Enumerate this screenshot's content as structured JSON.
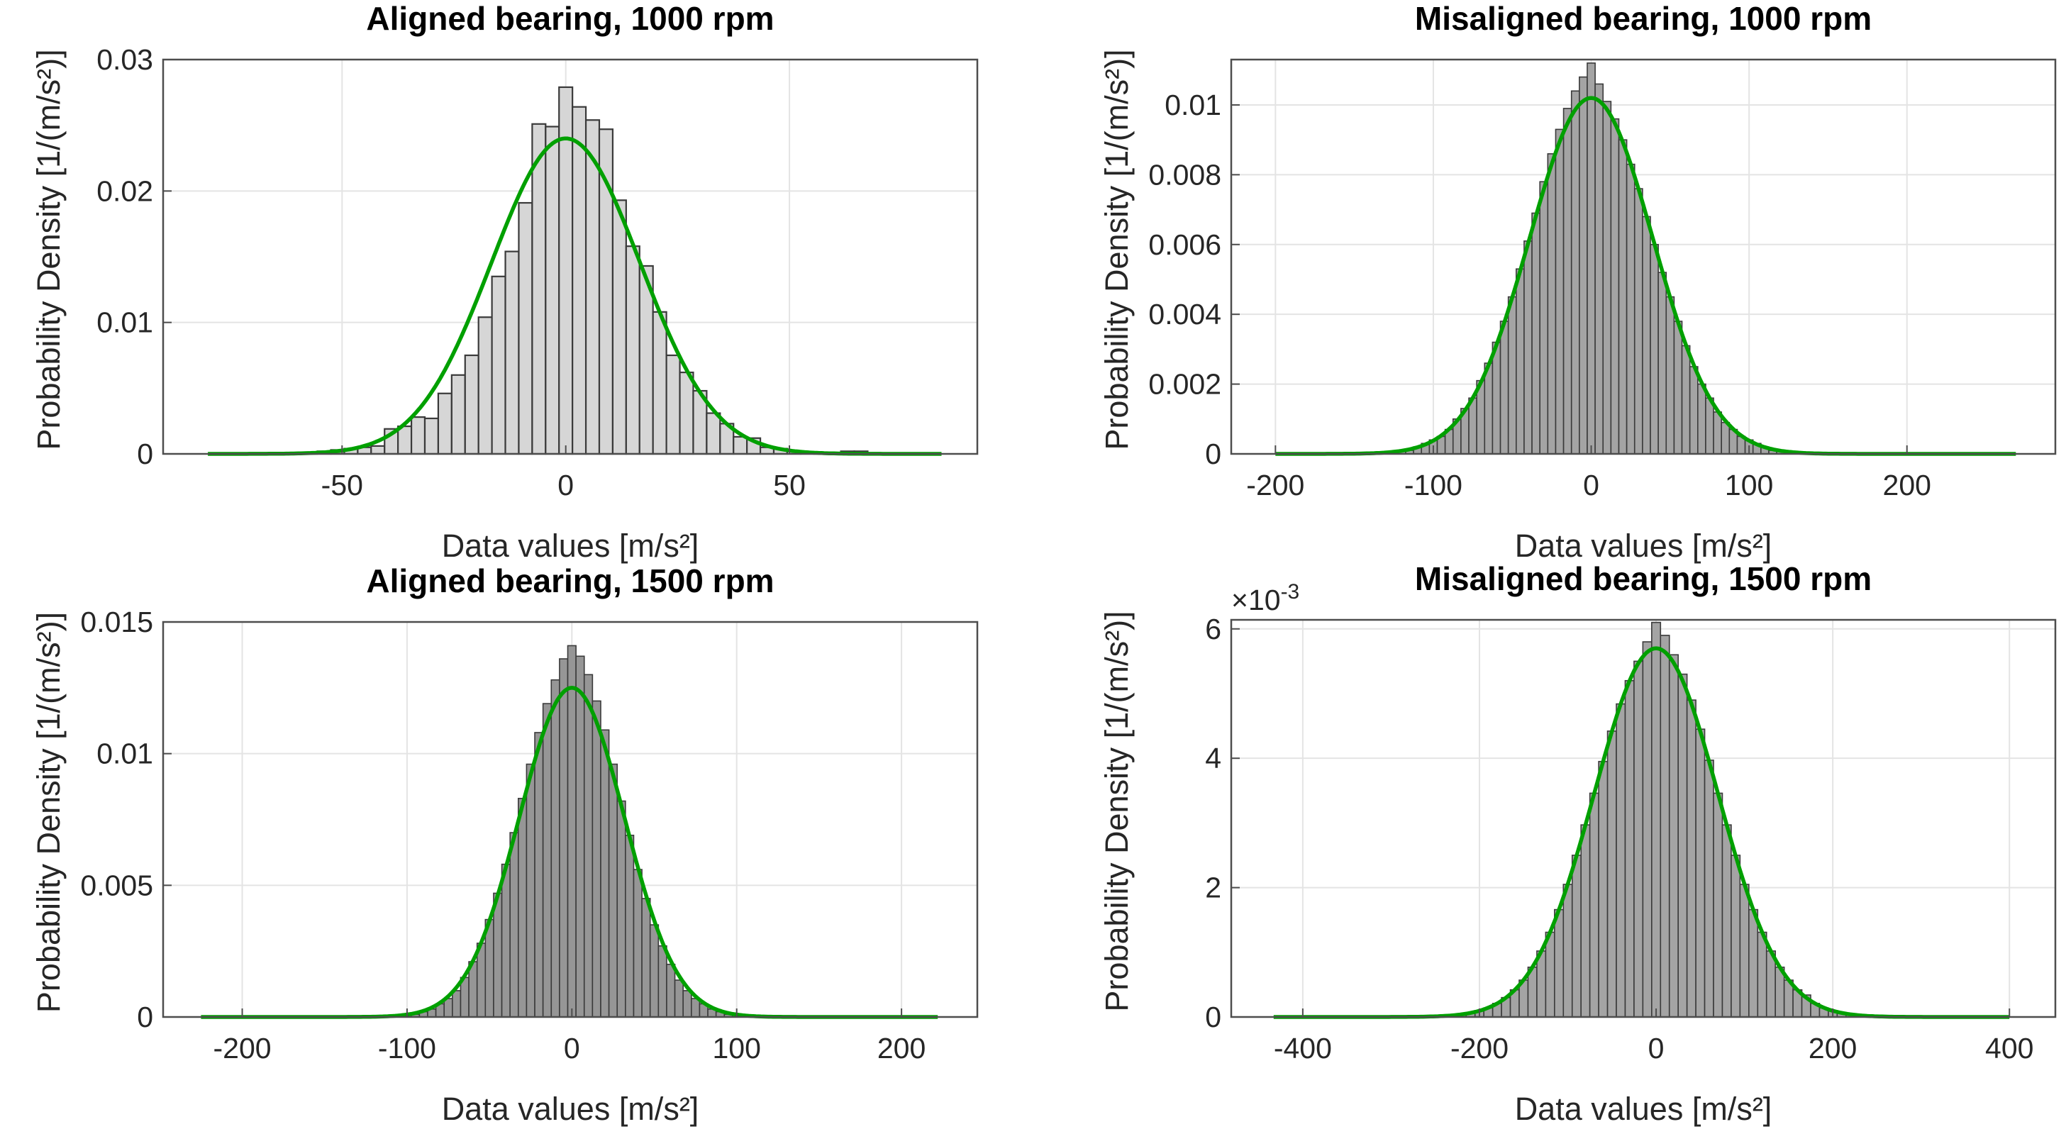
{
  "chart_data": [
    {
      "type": "bar",
      "title": "Aligned bearing, 1000 rpm",
      "xlabel": "Data values [m/s²]",
      "ylabel": "Probability Density [1/(m/s²)]",
      "xlim": [
        -90,
        92
      ],
      "ylim": [
        0,
        0.03
      ],
      "xticks": [
        -50,
        0,
        50
      ],
      "xtick_labels": [
        "-50",
        "0",
        "50"
      ],
      "yticks": [
        0,
        0.01,
        0.02,
        0.03
      ],
      "ytick_labels": [
        "0",
        "0.01",
        "0.02",
        "0.03"
      ],
      "grid": true,
      "bar_color": "#d6d6d6",
      "histogram": {
        "bin_width": 3,
        "bin_centers": [
          -63,
          -60,
          -57,
          -54,
          -51,
          -48,
          -45,
          -42,
          -39,
          -36,
          -33,
          -30,
          -27,
          -24,
          -21,
          -18,
          -15,
          -12,
          -9,
          -6,
          -3,
          0,
          3,
          6,
          9,
          12,
          15,
          18,
          21,
          24,
          27,
          30,
          33,
          36,
          39,
          42,
          45,
          48,
          51,
          54,
          57,
          60,
          63,
          66
        ],
        "values": [
          0.0001,
          0.0001,
          0.0001,
          0.0002,
          0.0003,
          0.0004,
          0.0005,
          0.0006,
          0.0019,
          0.0021,
          0.0028,
          0.0027,
          0.0046,
          0.006,
          0.0075,
          0.0104,
          0.0135,
          0.0154,
          0.0191,
          0.0251,
          0.0249,
          0.0279,
          0.0264,
          0.0254,
          0.0247,
          0.0193,
          0.0158,
          0.0143,
          0.0108,
          0.0075,
          0.0062,
          0.0048,
          0.0031,
          0.0023,
          0.0013,
          0.0012,
          0.0005,
          0.0004,
          0.0002,
          0.0001,
          0.0001,
          0.0001,
          0.0002,
          0.0002
        ]
      },
      "fit": {
        "type": "normal",
        "mean": 0,
        "sigma": 16.6,
        "peak": 0.024,
        "x_range": [
          -80,
          84
        ],
        "color": "#00a000"
      }
    },
    {
      "type": "bar",
      "title": "Misaligned bearing, 1000 rpm",
      "xlabel": "Data values [m/s²]",
      "ylabel": "Probability Density [1/(m/s²)]",
      "xlim": [
        -228,
        294
      ],
      "ylim": [
        0,
        0.0113
      ],
      "xticks": [
        -200,
        -100,
        0,
        100,
        200
      ],
      "xtick_labels": [
        "-200",
        "-100",
        "0",
        "100",
        "200"
      ],
      "yticks": [
        0,
        0.002,
        0.004,
        0.006,
        0.008,
        0.01
      ],
      "ytick_labels": [
        "0",
        "0.002",
        "0.004",
        "0.006",
        "0.008",
        "0.01"
      ],
      "grid": true,
      "bar_color": "#a4a4a4",
      "histogram": {
        "bin_width": 5,
        "bin_centers": [
          -120,
          -115,
          -110,
          -105,
          -100,
          -95,
          -90,
          -85,
          -80,
          -75,
          -70,
          -65,
          -60,
          -55,
          -50,
          -45,
          -40,
          -35,
          -30,
          -25,
          -20,
          -15,
          -10,
          -5,
          0,
          5,
          10,
          15,
          20,
          25,
          30,
          35,
          40,
          45,
          50,
          55,
          60,
          65,
          70,
          75,
          80,
          85,
          90,
          95,
          100,
          105,
          110,
          115,
          120
        ],
        "values": [
          0.0001,
          0.0001,
          0.0002,
          0.0003,
          0.0004,
          0.0005,
          0.0007,
          0.001,
          0.0013,
          0.0016,
          0.0021,
          0.0026,
          0.0032,
          0.0038,
          0.0045,
          0.0053,
          0.0061,
          0.0069,
          0.0078,
          0.0086,
          0.0093,
          0.0099,
          0.0104,
          0.0108,
          0.0112,
          0.0106,
          0.0101,
          0.0096,
          0.009,
          0.0083,
          0.0076,
          0.0068,
          0.006,
          0.0052,
          0.0045,
          0.0038,
          0.0031,
          0.0025,
          0.002,
          0.0016,
          0.0012,
          0.0009,
          0.0007,
          0.0005,
          0.0004,
          0.0003,
          0.0002,
          0.0001,
          0.0001
        ]
      },
      "fit": {
        "type": "normal",
        "mean": 0,
        "sigma": 39,
        "peak": 0.0102,
        "x_range": [
          -200,
          269
        ],
        "color": "#00a000"
      }
    },
    {
      "type": "bar",
      "title": "Aligned bearing, 1500 rpm",
      "xlabel": "Data values [m/s²]",
      "ylabel": "Probability Density [1/(m/s²)]",
      "xlim": [
        -248,
        246
      ],
      "ylim": [
        0,
        0.015
      ],
      "xticks": [
        -200,
        -100,
        0,
        100,
        200
      ],
      "xtick_labels": [
        "-200",
        "-100",
        "0",
        "100",
        "200"
      ],
      "yticks": [
        0,
        0.005,
        0.01,
        0.015
      ],
      "ytick_labels": [
        "0",
        "0.005",
        "0.01",
        "0.015"
      ],
      "grid": true,
      "bar_color": "#969696",
      "histogram": {
        "bin_width": 5,
        "bin_centers": [
          -100,
          -95,
          -90,
          -85,
          -80,
          -75,
          -70,
          -65,
          -60,
          -55,
          -50,
          -45,
          -40,
          -35,
          -30,
          -25,
          -20,
          -15,
          -10,
          -5,
          0,
          5,
          10,
          15,
          20,
          25,
          30,
          35,
          40,
          45,
          50,
          55,
          60,
          65,
          70,
          75,
          80,
          85,
          90,
          95,
          100
        ],
        "values": [
          0.0001,
          0.0001,
          0.0002,
          0.0003,
          0.0005,
          0.0007,
          0.001,
          0.0015,
          0.0021,
          0.0028,
          0.0037,
          0.0047,
          0.0058,
          0.007,
          0.0083,
          0.0096,
          0.0108,
          0.0119,
          0.0128,
          0.0136,
          0.0141,
          0.0137,
          0.013,
          0.012,
          0.0109,
          0.0096,
          0.0082,
          0.0069,
          0.0056,
          0.0045,
          0.0035,
          0.0027,
          0.002,
          0.0014,
          0.001,
          0.0007,
          0.0005,
          0.0003,
          0.0002,
          0.0001,
          0.0001
        ]
      },
      "fit": {
        "type": "normal",
        "mean": 0,
        "sigma": 31.9,
        "peak": 0.0125,
        "x_range": [
          -225,
          222
        ],
        "color": "#00a000"
      }
    },
    {
      "type": "bar",
      "title": "Misaligned bearing, 1500 rpm",
      "xlabel": "Data values [m/s²]",
      "ylabel": "Probability Density [1/(m/s²)]",
      "xlim": [
        -481,
        452
      ],
      "ylim": [
        0,
        0.00614
      ],
      "xticks": [
        -400,
        -200,
        0,
        200,
        400
      ],
      "xtick_labels": [
        "-400",
        "-200",
        "0",
        "200",
        "400"
      ],
      "yticks": [
        0,
        0.002,
        0.004,
        0.006
      ],
      "ytick_labels": [
        "0",
        "2",
        "4",
        "6"
      ],
      "y_exponent_label": "×10",
      "y_exponent": "-3",
      "grid": true,
      "bar_color": "#a4a4a4",
      "histogram": {
        "bin_width": 10,
        "bin_centers": [
          -230,
          -220,
          -210,
          -200,
          -190,
          -180,
          -170,
          -160,
          -150,
          -140,
          -130,
          -120,
          -110,
          -100,
          -90,
          -80,
          -70,
          -60,
          -50,
          -40,
          -30,
          -20,
          -10,
          0,
          10,
          20,
          30,
          40,
          50,
          60,
          70,
          80,
          90,
          100,
          110,
          120,
          130,
          140,
          150,
          160,
          170,
          180,
          190,
          200,
          210,
          220,
          230,
          240
        ],
        "values": [
          3e-05,
          4e-05,
          6e-05,
          0.0001,
          0.00014,
          0.00021,
          0.0003,
          0.00042,
          0.00057,
          0.00077,
          0.00102,
          0.00131,
          0.00166,
          0.00205,
          0.0025,
          0.00297,
          0.00346,
          0.00395,
          0.00442,
          0.00484,
          0.0052,
          0.0055,
          0.0058,
          0.0061,
          0.0059,
          0.0056,
          0.0053,
          0.0049,
          0.00445,
          0.00397,
          0.00346,
          0.00297,
          0.0025,
          0.00205,
          0.00166,
          0.00131,
          0.00102,
          0.00077,
          0.00057,
          0.00042,
          0.00034,
          0.00021,
          0.00014,
          0.0001,
          6e-05,
          4e-05,
          3e-05,
          2e-05
        ]
      },
      "fit": {
        "type": "normal",
        "mean": 0,
        "sigma": 70,
        "peak": 0.0057,
        "x_range": [
          -433,
          400
        ],
        "color": "#00a000"
      }
    }
  ]
}
